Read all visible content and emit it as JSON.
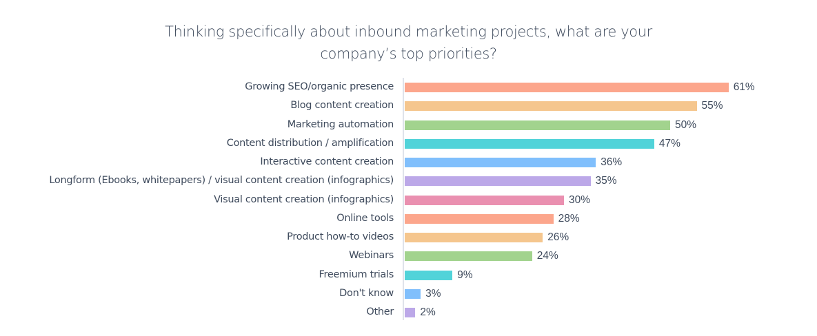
{
  "chart_data": {
    "type": "bar",
    "orientation": "horizontal",
    "title": "Thinking specifically about inbound marketing projects, what are your company’s top priorities?",
    "title_lines": [
      "Thinking specifically about inbound marketing projects, what are your",
      "company’s top priorities?"
    ],
    "xlabel": "",
    "ylabel": "",
    "grid": false,
    "legend": null,
    "xlim": [
      0,
      61
    ],
    "categories": [
      "Growing SEO/organic presence",
      "Blog content creation",
      "Marketing automation",
      "Content distribution / amplification",
      "Interactive content creation",
      "Longform (Ebooks, whitepapers) / visual content creation (infographics)",
      "Visual content creation (infographics)",
      "Online tools",
      "Product how-to videos",
      "Webinars",
      "Freemium trials",
      "Don't know",
      "Other"
    ],
    "values": [
      61,
      55,
      50,
      47,
      36,
      35,
      30,
      28,
      26,
      24,
      9,
      3,
      2
    ],
    "value_labels": [
      "61%",
      "55%",
      "50%",
      "47%",
      "36%",
      "35%",
      "30%",
      "28%",
      "26%",
      "24%",
      "9%",
      "3%",
      "2%"
    ],
    "colors": [
      "#fca68c",
      "#f5c68e",
      "#a2d38e",
      "#51d3d9",
      "#80bffc",
      "#bca8e8",
      "#ea90b0",
      "#fca68c",
      "#f5c68e",
      "#a2d38e",
      "#51d3d9",
      "#80bffc",
      "#bca8e8"
    ],
    "unit": "%"
  }
}
